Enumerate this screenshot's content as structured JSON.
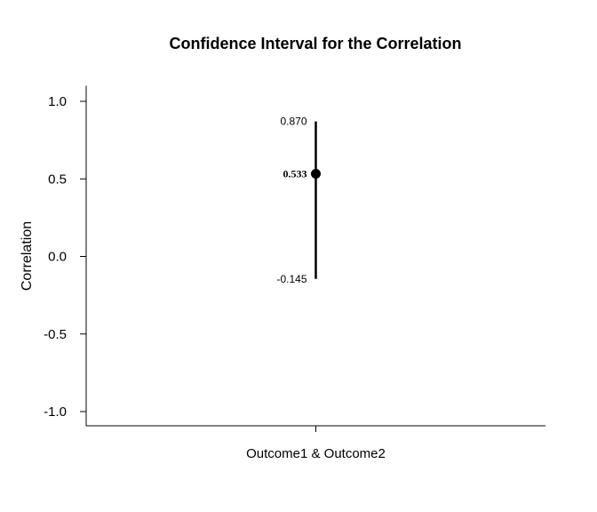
{
  "chart_data": {
    "type": "scatter",
    "title": "Confidence Interval for the Correlation",
    "ylabel": "Correlation",
    "xlabel": "",
    "ylim": [
      -1.1,
      1.1
    ],
    "yticks": [
      1.0,
      0.5,
      0.0,
      -0.5,
      -1.0
    ],
    "ytick_labels": [
      "1.0",
      "0.5",
      "0.0",
      "-0.5",
      "-1.0"
    ],
    "categories": [
      "Outcome1 & Outcome2"
    ],
    "estimates": [
      0.533
    ],
    "lower": [
      -0.145
    ],
    "upper": [
      0.87
    ],
    "estimate_labels": [
      "0.533"
    ],
    "lower_labels": [
      "-0.145"
    ],
    "upper_labels": [
      "0.870"
    ],
    "grid": false,
    "color": "#000000"
  }
}
